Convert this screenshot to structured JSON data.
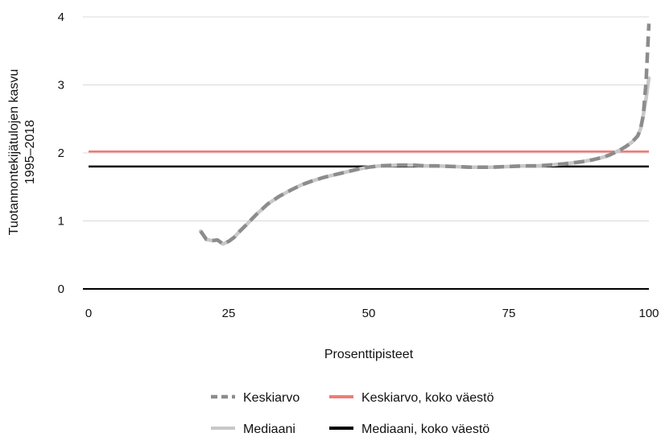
{
  "chart_data": {
    "type": "line",
    "title": "",
    "xlabel": "Prosenttipisteet",
    "ylabel_lines": [
      "Tuotannontekijätulojen kasvu",
      "1995–2018"
    ],
    "xlim": [
      0,
      100
    ],
    "ylim": [
      0,
      4
    ],
    "x_ticks": [
      0,
      25,
      50,
      75,
      100
    ],
    "y_ticks": [
      0,
      1,
      2,
      3,
      4
    ],
    "grid": "horizontal",
    "legend_position": "bottom",
    "series": [
      {
        "name": "Keskiarvo",
        "style": "dashed",
        "color": "#8c8c8c",
        "x": [
          20,
          21,
          22,
          23,
          24,
          25,
          26,
          27,
          28,
          30,
          32,
          34,
          36,
          38,
          40,
          42,
          44,
          46,
          48,
          50,
          52,
          55,
          58,
          60,
          62,
          65,
          68,
          70,
          72,
          75,
          78,
          80,
          82,
          85,
          88,
          90,
          92,
          93,
          94,
          95,
          96,
          97,
          98,
          98.5,
          99,
          99.5,
          100
        ],
        "y": [
          0.85,
          0.73,
          0.71,
          0.72,
          0.66,
          0.7,
          0.76,
          0.85,
          0.93,
          1.1,
          1.25,
          1.36,
          1.45,
          1.53,
          1.59,
          1.64,
          1.68,
          1.72,
          1.76,
          1.79,
          1.81,
          1.82,
          1.82,
          1.81,
          1.81,
          1.8,
          1.79,
          1.79,
          1.79,
          1.8,
          1.81,
          1.81,
          1.82,
          1.84,
          1.87,
          1.9,
          1.94,
          1.97,
          2.01,
          2.05,
          2.1,
          2.16,
          2.25,
          2.35,
          2.55,
          3.05,
          3.9
        ]
      },
      {
        "name": "Mediaani",
        "style": "solid",
        "color": "#c8c8c8",
        "x": [
          20,
          21,
          22,
          23,
          24,
          25,
          26,
          27,
          28,
          30,
          32,
          34,
          36,
          38,
          40,
          42,
          44,
          46,
          48,
          50,
          52,
          55,
          58,
          60,
          62,
          65,
          68,
          70,
          72,
          75,
          78,
          80,
          82,
          85,
          88,
          90,
          92,
          93,
          94,
          95,
          96,
          97,
          98,
          98.5,
          99,
          99.5,
          100
        ],
        "y": [
          0.85,
          0.73,
          0.71,
          0.72,
          0.66,
          0.7,
          0.76,
          0.85,
          0.93,
          1.1,
          1.25,
          1.36,
          1.45,
          1.53,
          1.59,
          1.64,
          1.68,
          1.72,
          1.76,
          1.79,
          1.81,
          1.82,
          1.82,
          1.81,
          1.81,
          1.8,
          1.79,
          1.79,
          1.79,
          1.8,
          1.81,
          1.81,
          1.82,
          1.84,
          1.87,
          1.9,
          1.94,
          1.97,
          2.01,
          2.05,
          2.1,
          2.16,
          2.25,
          2.35,
          2.55,
          2.8,
          3.1
        ]
      },
      {
        "name": "Keskiarvo, koko väestö",
        "style": "solid",
        "color": "#f27b76",
        "x": [
          0,
          100
        ],
        "y": [
          2.02,
          2.02
        ]
      },
      {
        "name": "Mediaani, koko väestö",
        "style": "solid",
        "color": "#000000",
        "x": [
          0,
          100
        ],
        "y": [
          1.8,
          1.8
        ]
      }
    ],
    "legend": [
      {
        "series": 0,
        "label": "Keskiarvo"
      },
      {
        "series": 2,
        "label": "Keskiarvo, koko väestö"
      },
      {
        "series": 1,
        "label": "Mediaani"
      },
      {
        "series": 3,
        "label": "Mediaani, koko väestö"
      }
    ]
  }
}
